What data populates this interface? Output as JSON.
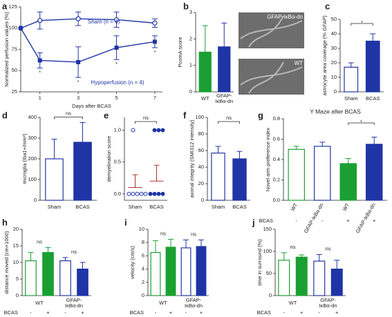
{
  "chart_data": [
    {
      "type": "line",
      "label": "a",
      "ylabel": "Normalized perfusion values (%)",
      "xlabel": "Days after BCAS",
      "x": [
        0,
        1,
        3,
        5,
        7
      ],
      "xlim": [
        0,
        7.4
      ],
      "xticks": [
        1,
        3,
        5,
        7
      ],
      "ylim": [
        25,
        125
      ],
      "yticks": [
        25,
        50,
        75,
        100,
        125
      ],
      "series": [
        {
          "name": "Sham (n = 4)",
          "color": "#1f35a6",
          "marker": "open-circle",
          "values": [
            100,
            109,
            111,
            110,
            106
          ],
          "errors": [
            0,
            10,
            8,
            9,
            5
          ]
        },
        {
          "name": "Hypoperfusion (n = 4)",
          "color": "#1f35a6",
          "marker": "filled-square",
          "values": [
            100,
            62,
            60,
            77,
            84
          ],
          "errors": [
            0,
            9,
            18,
            14,
            7
          ]
        }
      ],
      "significance": [
        "*",
        "*",
        "*",
        "*"
      ],
      "significance_x": [
        1,
        3,
        5,
        7
      ]
    },
    {
      "type": "bar",
      "label": "b",
      "ylabel": "PcomA score",
      "categories": [
        "WT",
        "GFAP-IκBα-dn"
      ],
      "values": [
        1.5,
        1.7
      ],
      "errors": [
        1.0,
        0.9
      ],
      "colors": [
        "#1aa032",
        "#1f35a6"
      ],
      "filled": [
        true,
        true
      ],
      "ylim": [
        0,
        3
      ],
      "yticks": [
        0,
        1,
        2,
        3
      ],
      "images": [
        "GFAP-IκBα-dn",
        "WT"
      ]
    },
    {
      "type": "bar",
      "label": "c",
      "ylabel": "astrocyte area coverage (% GFAP)",
      "categories": [
        "Sham",
        "BCAS"
      ],
      "values": [
        17,
        35
      ],
      "errors": [
        3,
        5
      ],
      "colors": [
        "#1f35a6",
        "#1f35a6"
      ],
      "filled": [
        false,
        true
      ],
      "ylim": [
        0,
        50
      ],
      "yticks": [
        0,
        10,
        20,
        30,
        40,
        50
      ],
      "significance": "*"
    },
    {
      "type": "bar",
      "label": "d",
      "ylabel": "microglia (Iba1+/mm²)",
      "categories": [
        "Sham",
        "BCAS"
      ],
      "values": [
        200,
        280
      ],
      "errors": [
        95,
        95
      ],
      "colors": [
        "#1f35a6",
        "#1f35a6"
      ],
      "filled": [
        false,
        true
      ],
      "ylim": [
        0,
        400
      ],
      "yticks": [
        0,
        100,
        200,
        300,
        400
      ],
      "significance": "ns"
    },
    {
      "type": "dot",
      "label": "e",
      "ylabel": "demyelination score",
      "categories": [
        "Sham",
        "BCAS"
      ],
      "points": [
        [
          1,
          0,
          0,
          0,
          0,
          0
        ],
        [
          1,
          1,
          1,
          0,
          0,
          0,
          0
        ]
      ],
      "means": [
        0.1,
        0.2
      ],
      "errors": [
        0.2,
        0.25
      ],
      "colors": [
        "#1f35a6",
        "#1f35a6"
      ],
      "filled": [
        false,
        true
      ],
      "ylim": [
        -0.1,
        1.2
      ],
      "yticks": [
        {
          "value": 0,
          "label": "0.0"
        },
        {
          "value": 0.5,
          "label": "0.5"
        },
        {
          "value": 1,
          "label": "1.0"
        }
      ],
      "significance": "ns"
    },
    {
      "type": "bar",
      "label": "f",
      "ylabel": "axonal integrity (SMI312 intensity)",
      "categories": [
        "Sham",
        "BCAS"
      ],
      "values": [
        57,
        50
      ],
      "errors": [
        8,
        9
      ],
      "colors": [
        "#1f35a6",
        "#1f35a6"
      ],
      "filled": [
        false,
        true
      ],
      "ylim": [
        0,
        100
      ],
      "yticks": [
        0,
        20,
        40,
        60,
        80,
        100
      ],
      "significance": "ns"
    },
    {
      "type": "bar",
      "label": "g",
      "title": "Y Maze after BCAS",
      "ylabel": "Novel arm preference index",
      "categories": [
        "WT",
        "GFAP-IκBα-dn",
        "WT",
        "GFAP-IκBα-dn"
      ],
      "values": [
        0.5,
        0.53,
        0.36,
        0.55
      ],
      "errors": [
        0.03,
        0.04,
        0.05,
        0.07
      ],
      "colors": [
        "#1aa032",
        "#1f35a6",
        "#1aa032",
        "#1f35a6"
      ],
      "filled": [
        false,
        false,
        true,
        true
      ],
      "ylim": [
        0,
        0.8
      ],
      "yticks": [
        {
          "value": 0,
          "label": "0.0"
        },
        {
          "value": 0.2,
          "label": "0.2"
        },
        {
          "value": 0.4,
          "label": "0.4"
        },
        {
          "value": 0.6,
          "label": "0.6"
        },
        {
          "value": 0.8,
          "label": "0.8"
        }
      ],
      "conditions": [
        "-",
        "-",
        "+",
        "+"
      ],
      "condition_label": "BCAS",
      "significance": "*"
    },
    {
      "type": "bar",
      "label": "h",
      "ylabel": "distance moved (cm×1000)",
      "categories": [
        "-",
        "+",
        "-",
        "+"
      ],
      "groups": [
        "WT",
        "GFAP-IκBα-dn"
      ],
      "condition_label": "BCAS",
      "values": [
        10.5,
        13,
        10.5,
        8
      ],
      "errors": [
        2.5,
        1.5,
        1,
        2
      ],
      "colors": [
        "#1aa032",
        "#1aa032",
        "#1f35a6",
        "#1f35a6"
      ],
      "filled": [
        false,
        true,
        false,
        true
      ],
      "ylim": [
        0,
        20
      ],
      "yticks": [
        0,
        5,
        10,
        15,
        20
      ],
      "significance": [
        "ns",
        "ns"
      ]
    },
    {
      "type": "bar",
      "label": "i",
      "ylabel": "velocity (cm/s)",
      "categories": [
        "-",
        "+",
        "-",
        "+"
      ],
      "groups": [
        "WT",
        "GFAP-IκBα-dn"
      ],
      "condition_label": "BCAS",
      "values": [
        6.5,
        7.3,
        7.2,
        7.4
      ],
      "errors": [
        1.8,
        1.2,
        1.2,
        1.0
      ],
      "colors": [
        "#1aa032",
        "#1aa032",
        "#1f35a6",
        "#1f35a6"
      ],
      "filled": [
        false,
        true,
        false,
        true
      ],
      "ylim": [
        0,
        10
      ],
      "yticks": [
        0,
        2,
        4,
        6,
        8,
        10
      ],
      "significance": [
        "ns",
        "ns"
      ]
    },
    {
      "type": "bar",
      "label": "j",
      "ylabel": "time in surround (%)",
      "categories": [
        "-",
        "+",
        "-",
        "+"
      ],
      "groups": [
        "WT",
        "GFAP-IκBα-dn"
      ],
      "condition_label": "BCAS",
      "values": [
        80,
        87,
        78,
        60
      ],
      "errors": [
        17,
        5,
        15,
        20
      ],
      "colors": [
        "#1aa032",
        "#1aa032",
        "#1f35a6",
        "#1f35a6"
      ],
      "filled": [
        false,
        true,
        false,
        true
      ],
      "ylim": [
        0,
        150
      ],
      "yticks": [
        0,
        50,
        100,
        150
      ],
      "significance": [
        "ns",
        "ns"
      ]
    }
  ]
}
